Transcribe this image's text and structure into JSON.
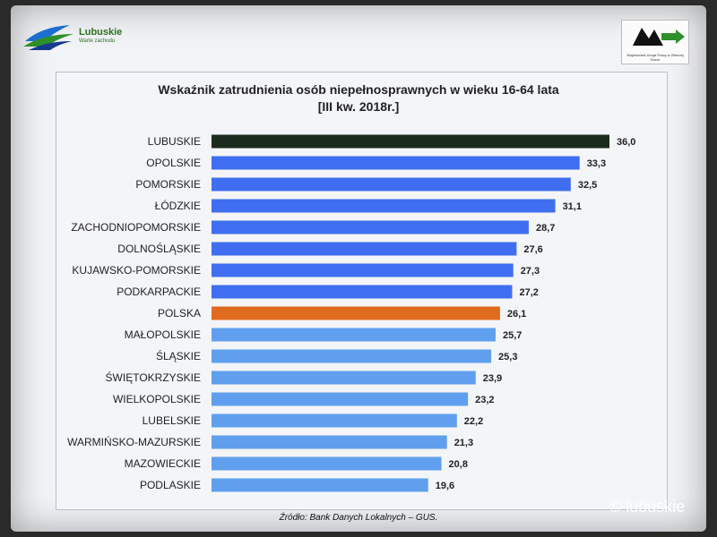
{
  "header": {
    "left_logo_brand": "Lubuskie",
    "left_logo_tagline": "Warte zachodu",
    "right_logo_caption": "Wojewódzki Urząd Pracy w Zielonej Górze"
  },
  "watermark": "© lubuskie",
  "chart_data": {
    "type": "bar",
    "orientation": "horizontal",
    "title": "Wskaźnik zatrudnienia osób niepełnosprawnych w wieku 16-64 lata",
    "subtitle": "[III kw. 2018r.]",
    "source": "Źródło: Bank Danych Lokalnych – GUS.",
    "categories": [
      "LUBUSKIE",
      "OPOLSKIE",
      "POMORSKIE",
      "ŁÓDZKIE",
      "ZACHODNIOPOMORSKIE",
      "DOLNOŚLĄSKIE",
      "KUJAWSKO-POMORSKIE",
      "PODKARPACKIE",
      "POLSKA",
      "MAŁOPOLSKIE",
      "ŚLĄSKIE",
      "ŚWIĘTOKRZYSKIE",
      "WIELKOPOLSKIE",
      "LUBELSKIE",
      "WARMIŃSKO-MAZURSKIE",
      "MAZOWIECKIE",
      "PODLASKIE"
    ],
    "values": [
      36.0,
      33.3,
      32.5,
      31.1,
      28.7,
      27.6,
      27.3,
      27.2,
      26.1,
      25.7,
      25.3,
      23.9,
      23.2,
      22.2,
      21.3,
      20.8,
      19.6
    ],
    "value_labels": [
      "36,0",
      "33,3",
      "32,5",
      "31,1",
      "28,7",
      "27,6",
      "27,3",
      "27,2",
      "26,1",
      "25,7",
      "25,3",
      "23,9",
      "23,2",
      "22,2",
      "21,3",
      "20,8",
      "19,6"
    ],
    "xlim": [
      0,
      36
    ],
    "grid": false,
    "legend": "none",
    "colors": {
      "highlight_region": "#1c2c1c",
      "national": "#e06b1e",
      "top_regions": "#3f6ff0",
      "other_regions": "#5f9fee"
    },
    "bar_color_groups": [
      "highlight_region",
      "top_regions",
      "top_regions",
      "top_regions",
      "top_regions",
      "top_regions",
      "top_regions",
      "top_regions",
      "national",
      "other_regions",
      "other_regions",
      "other_regions",
      "other_regions",
      "other_regions",
      "other_regions",
      "other_regions",
      "other_regions"
    ]
  }
}
